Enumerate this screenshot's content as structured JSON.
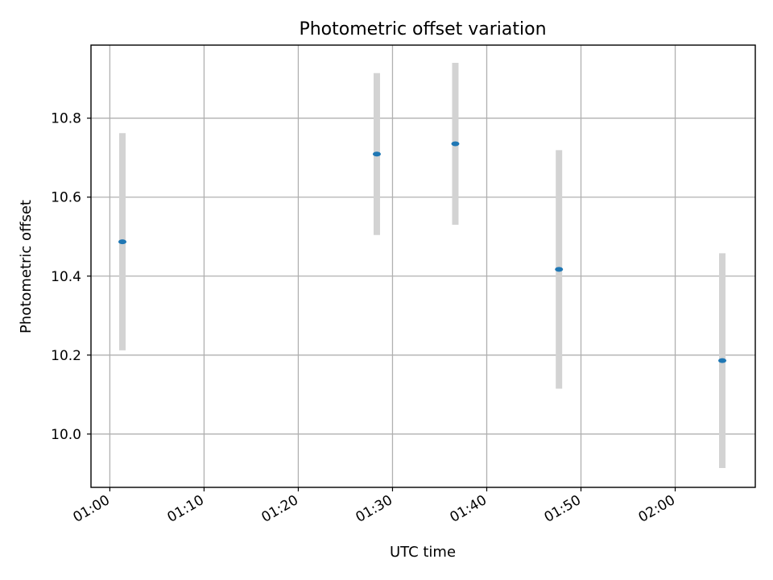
{
  "chart_data": {
    "type": "scatter",
    "title": "Photometric offset variation",
    "xlabel": "UTC time",
    "ylabel": "Photometric offset",
    "x_unit": "UTC time (HH:MM)",
    "xlim": [
      "00:58:00",
      "02:08:30"
    ],
    "ylim": [
      9.865,
      10.985
    ],
    "xticks": [
      "01:00",
      "01:10",
      "01:20",
      "01:30",
      "01:40",
      "01:50",
      "02:00"
    ],
    "yticks": [
      "10.0",
      "10.2",
      "10.4",
      "10.6",
      "10.8"
    ],
    "grid": true,
    "points": [
      {
        "x": "01:01:20",
        "y": 10.487,
        "err": 0.275
      },
      {
        "x": "01:28:20",
        "y": 10.709,
        "err": 0.205
      },
      {
        "x": "01:36:40",
        "y": 10.735,
        "err": 0.205
      },
      {
        "x": "01:47:40",
        "y": 10.417,
        "err": 0.302
      },
      {
        "x": "02:05:00",
        "y": 10.186,
        "err": 0.272
      }
    ],
    "colors": {
      "marker": "#1f77b4",
      "errorbar": "#d3d3d3",
      "grid": "#b0b0b0"
    }
  }
}
